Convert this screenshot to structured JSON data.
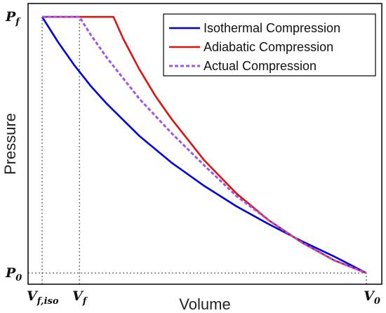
{
  "chart_data": {
    "type": "line",
    "title": "",
    "xlabel": "Volume",
    "ylabel": "Pressure",
    "xlim": [
      0.0,
      1.0
    ],
    "ylim": [
      0.0,
      1.0
    ],
    "grid": false,
    "legend_position": "top-right",
    "x_ticks": [
      {
        "main": "V",
        "sub": "f,iso",
        "x": 0.0
      },
      {
        "main": "V",
        "sub": "f",
        "x": 0.115
      },
      {
        "main": "V",
        "sub": "0",
        "x": 1.0
      }
    ],
    "y_ticks": [
      {
        "main": "P",
        "sub": "f",
        "y": 1.0
      },
      {
        "main": "P",
        "sub": "0",
        "y": 0.0
      }
    ],
    "guides": [
      {
        "type": "vertical",
        "x": 0.0,
        "y_to": 1.0
      },
      {
        "type": "vertical",
        "x": 0.115,
        "y_to": 1.0
      },
      {
        "type": "horizontal",
        "y": 0.0,
        "x_to": 1.0
      },
      {
        "type": "vertical",
        "x": 1.0,
        "y_to": 0.0
      }
    ],
    "series": [
      {
        "name": "Isothermal Compression",
        "color": "#0000dd",
        "dash": false,
        "x": [
          0.0,
          0.05,
          0.1,
          0.15,
          0.2,
          0.3,
          0.4,
          0.5,
          0.6,
          0.7,
          0.8,
          0.9,
          1.0
        ],
        "y": [
          1.0,
          0.9,
          0.81,
          0.73,
          0.66,
          0.535,
          0.43,
          0.34,
          0.26,
          0.19,
          0.125,
          0.065,
          0.0
        ]
      },
      {
        "name": "Adiabatic Compression",
        "color": "#dd1111",
        "dash": false,
        "x": [
          0.0,
          0.22,
          0.25,
          0.3,
          0.35,
          0.4,
          0.5,
          0.6,
          0.7,
          0.8,
          0.9,
          1.0
        ],
        "y": [
          1.0,
          1.0,
          0.915,
          0.795,
          0.69,
          0.6,
          0.44,
          0.31,
          0.205,
          0.12,
          0.05,
          0.0
        ]
      },
      {
        "name": "Actual Compression",
        "color": "#a155e8",
        "dash": true,
        "x": [
          0.0,
          0.115,
          0.15,
          0.2,
          0.3,
          0.4,
          0.5,
          0.6,
          0.7,
          0.8,
          0.9,
          1.0
        ],
        "y": [
          1.0,
          1.0,
          0.93,
          0.84,
          0.68,
          0.545,
          0.42,
          0.3,
          0.205,
          0.12,
          0.05,
          0.0
        ]
      }
    ]
  }
}
